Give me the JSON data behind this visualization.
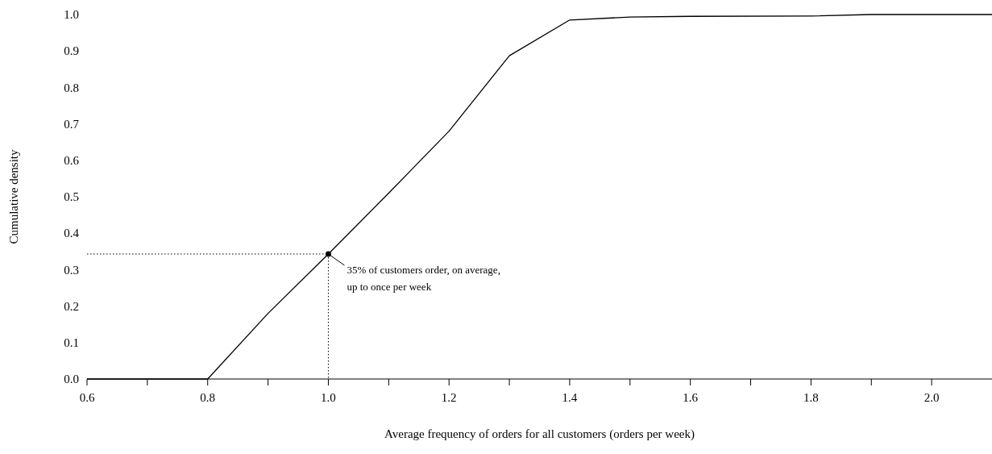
{
  "chart_data": {
    "type": "line",
    "xlabel": "Average frequency of orders for all customers (orders per week)",
    "ylabel": "Cumulative density",
    "x": [
      0.6,
      0.8,
      0.9,
      1.0,
      1.1,
      1.2,
      1.3,
      1.4,
      1.5,
      1.6,
      1.8,
      1.9,
      2.1
    ],
    "series": [
      {
        "color": "#000000",
        "values": [
          0,
          0,
          0.18,
          0.343,
          0.51,
          0.68,
          0.887,
          0.985,
          0.993,
          0.995,
          0.996,
          1.0,
          1.0
        ]
      }
    ],
    "xlim": [
      0.6,
      2.1
    ],
    "xticks": [
      0.6,
      {
        "value": 0.7,
        "label": null
      },
      0.8,
      {
        "value": 0.9,
        "label": null
      },
      {
        "value": 1.0,
        "label": "1.0"
      },
      {
        "value": 1.1,
        "label": null
      },
      1.2,
      {
        "value": 1.3,
        "label": null
      },
      1.4,
      {
        "value": 1.5,
        "label": null
      },
      1.6,
      {
        "value": 1.7,
        "label": null
      },
      1.8,
      {
        "value": 1.9,
        "label": null
      },
      {
        "value": 2.0,
        "label": "2.0"
      }
    ],
    "ylim": [
      0,
      1
    ],
    "yticks": [
      {
        "value": 0,
        "label": "0.0"
      },
      0.1,
      0.2,
      0.3,
      0.4,
      0.5,
      0.6,
      0.7,
      0.8,
      0.9,
      {
        "value": 1,
        "label": "1.0"
      }
    ],
    "grid": false,
    "marker": "none",
    "line_style": "solid",
    "annotations": [
      {
        "text": "35% of customers order, on average,\nup to once per week",
        "x": 1.0,
        "y": 0.343
      }
    ]
  }
}
